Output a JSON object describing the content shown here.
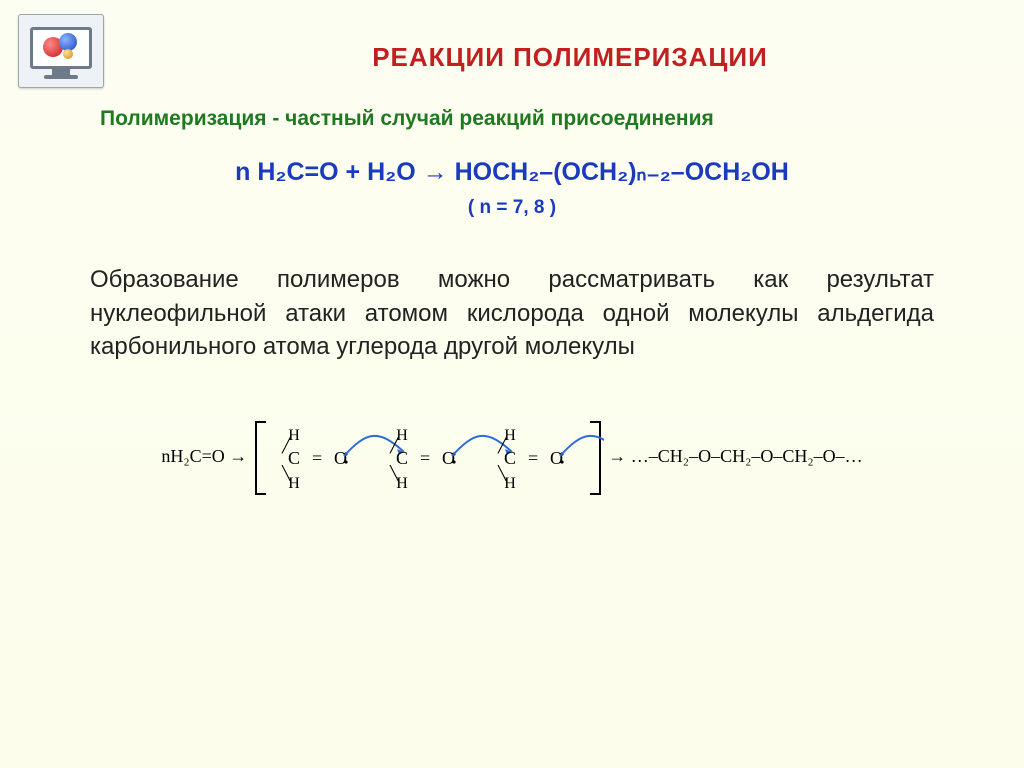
{
  "title": {
    "text": "РЕАКЦИИ ПОЛИМЕРИЗАЦИИ",
    "color": "#c02020",
    "fontsize": 26,
    "weight": "bold"
  },
  "subtitle": {
    "text": "Полимеризация - частный случай реакций присоединения",
    "color": "#1f7a1f",
    "fontsize": 21,
    "weight": "bold"
  },
  "equation": {
    "text": "n H₂C=O + H₂O → HOCH₂–(OCH₂)ₙ₋₂–OCH₂OH",
    "color": "#1a3bbd",
    "fontsize": 25,
    "weight": "bold"
  },
  "n_note": {
    "text": "( n = 7, 8 )",
    "color": "#1a3bbd",
    "fontsize": 19,
    "weight": "bold"
  },
  "body": {
    "text": "Образование полимеров можно рассматривать как результат нуклеофильной атаки атомом кислорода одной молекулы альдегида карбонильного атома углерода другой молекулы",
    "color": "#222222",
    "fontsize": 24,
    "weight": "normal"
  },
  "mechanism": {
    "left_text": "nH₂C=O →",
    "monomer_top": "H",
    "monomer_mid": "C = O",
    "monomer_bot": "H",
    "right_text": "→ …–CH₂–O–CH₂–O–CH₂–O–…",
    "repeat_count": 3,
    "arrow_color": "#2a6dd6",
    "text_color": "#000000",
    "font_family": "serif",
    "fontsize": 18,
    "bracket_color": "#000000"
  },
  "background_gradient": [
    "#fdfef2",
    "#fcfdea"
  ],
  "icon": {
    "frame_fill": "#eef2f6",
    "frame_border": "#9aa6b2",
    "monitor_border": "#6c7a89",
    "atoms": [
      {
        "color_outer": "#c31818",
        "color_inner": "#ff8a8a"
      },
      {
        "color_outer": "#1a3fc3",
        "color_inner": "#8ab6ff"
      },
      {
        "color_outer": "#c38a18",
        "color_inner": "#ffe18a"
      }
    ]
  }
}
